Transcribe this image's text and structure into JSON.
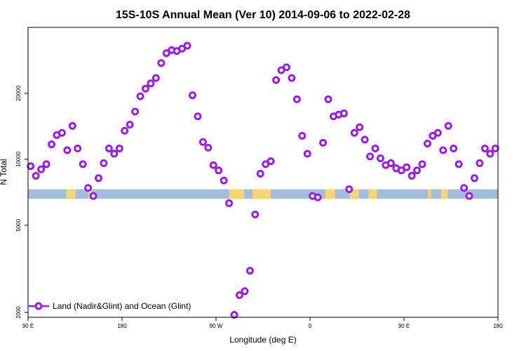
{
  "chart_data": {
    "type": "scatter",
    "title": "15S-10S Annual Mean (Ver 10)   2014-09-06 to 2022-02-28",
    "xlabel": "Longitude (deg E)",
    "ylabel": "N Total",
    "xlim": [
      90,
      540
    ],
    "ylim": [
      1900,
      40000
    ],
    "yscale": "log",
    "grid": false,
    "legend_position": "bottom-left",
    "x_ticks": [
      {
        "value": 90,
        "label": "90 E"
      },
      {
        "value": 180,
        "label": "180"
      },
      {
        "value": 270,
        "label": "90 W"
      },
      {
        "value": 360,
        "label": "0"
      },
      {
        "value": 450,
        "label": "90 E"
      },
      {
        "value": 540,
        "label": "180"
      }
    ],
    "y_ticks": [
      {
        "value": 2000,
        "label": "2000"
      },
      {
        "value": 5000,
        "label": "5000"
      },
      {
        "value": 10000,
        "label": "10000"
      },
      {
        "value": 20000,
        "label": "20000"
      }
    ],
    "band": {
      "y_low": 6600,
      "y_high": 7300,
      "ocean_color": "#a3bedc",
      "land_color": "#f7d575",
      "land_segments": [
        [
          126.5,
          135.5
        ],
        [
          148,
          151
        ],
        [
          282.5,
          297
        ],
        [
          305,
          322.5
        ],
        [
          374.5,
          384
        ],
        [
          398,
          407
        ],
        [
          416,
          424
        ],
        [
          473,
          476
        ],
        [
          485.5,
          492
        ]
      ]
    },
    "series": [
      {
        "name": "Land (Nadir&Glint) and Ocean (Glint)",
        "color": "#9b1ee0",
        "x": [
          92.5,
          97.5,
          102.5,
          107.5,
          112.5,
          117.5,
          122.5,
          127.5,
          132.5,
          137.5,
          142.5,
          147.5,
          152.5,
          157.5,
          162.5,
          167.5,
          172.5,
          177.5,
          182.5,
          187.5,
          192.5,
          197.5,
          202.5,
          207.5,
          212.5,
          217.5,
          222.5,
          227.5,
          232.5,
          237.5,
          242.5,
          247.5,
          252.5,
          257.5,
          262.5,
          267.5,
          272.5,
          277.5,
          282.5,
          287.5,
          292.5,
          297.5,
          302.5,
          307.5,
          312.5,
          317.5,
          322.5,
          327.5,
          332.5,
          337.5,
          342.5,
          347.5,
          352.5,
          357.5,
          362.5,
          367.5,
          372.5,
          377.5,
          382.5,
          387.5,
          392.5,
          397.5,
          402.5,
          407.5,
          412.5,
          417.5,
          422.5,
          427.5,
          432.5,
          437.5,
          442.5,
          447.5,
          452.5,
          457.5,
          462.5,
          467.5,
          472.5,
          477.5,
          482.5,
          487.5,
          492.5,
          497.5,
          502.5,
          507.5,
          512.5,
          517.5,
          522.5,
          527.5,
          532.5,
          537.5
        ],
        "y": [
          9300,
          8400,
          9000,
          9500,
          11700,
          12900,
          13200,
          11000,
          14200,
          11200,
          9500,
          7400,
          6800,
          8200,
          9600,
          11200,
          10600,
          11200,
          13500,
          14400,
          16500,
          19400,
          21000,
          22200,
          23500,
          27500,
          30500,
          31500,
          31200,
          32000,
          33000,
          19600,
          15700,
          12000,
          11300,
          9400,
          8900,
          8000,
          6300,
          1950,
          2400,
          2500,
          3100,
          5600,
          8600,
          9500,
          9800,
          23000,
          25500,
          26300,
          23500,
          18800,
          12800,
          10600,
          6800,
          6700,
          11900,
          18800,
          15700,
          16000,
          16200,
          7300,
          13200,
          14000,
          12300,
          10300,
          11200,
          10100,
          9400,
          9600,
          9100,
          8900,
          9200,
          8400,
          8900,
          9500,
          11800,
          12800,
          13200,
          11000,
          14200,
          11200,
          9500,
          7400,
          6800,
          8200,
          9600,
          11200,
          10600,
          11200
        ]
      }
    ]
  }
}
